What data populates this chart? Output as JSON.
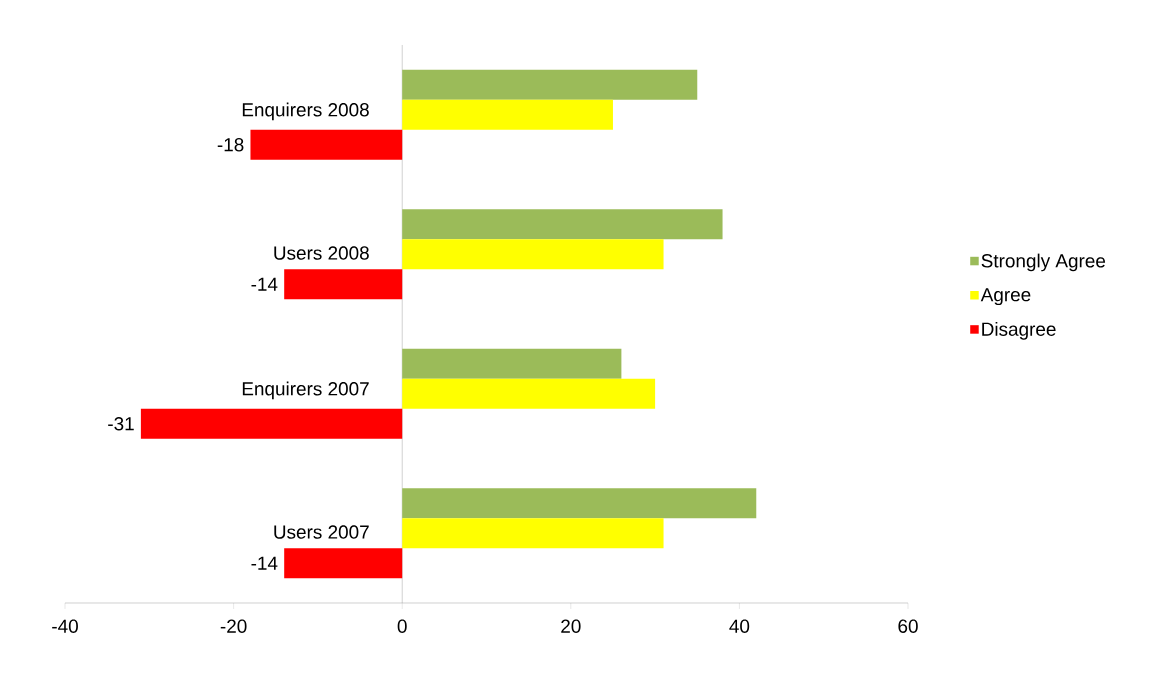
{
  "chart_data": {
    "type": "bar",
    "orientation": "horizontal",
    "categories": [
      "Enquirers 2008",
      "Users 2008",
      "Enquirers 2007",
      "Users 2007"
    ],
    "series": [
      {
        "name": "Strongly Agree",
        "color": "#9bbb59",
        "values": [
          35,
          38,
          26,
          42
        ]
      },
      {
        "name": "Agree",
        "color": "#ffff00",
        "values": [
          25,
          31,
          30,
          31
        ]
      },
      {
        "name": "Disagree",
        "color": "#ff0000",
        "values": [
          -18,
          -14,
          -31,
          -14
        ],
        "value_labels": [
          "-18",
          "-14",
          "-31",
          "-14"
        ]
      }
    ],
    "xlim": [
      -40,
      60
    ],
    "xticks": [
      -40,
      -20,
      0,
      20,
      40,
      60
    ],
    "legend": "right"
  }
}
